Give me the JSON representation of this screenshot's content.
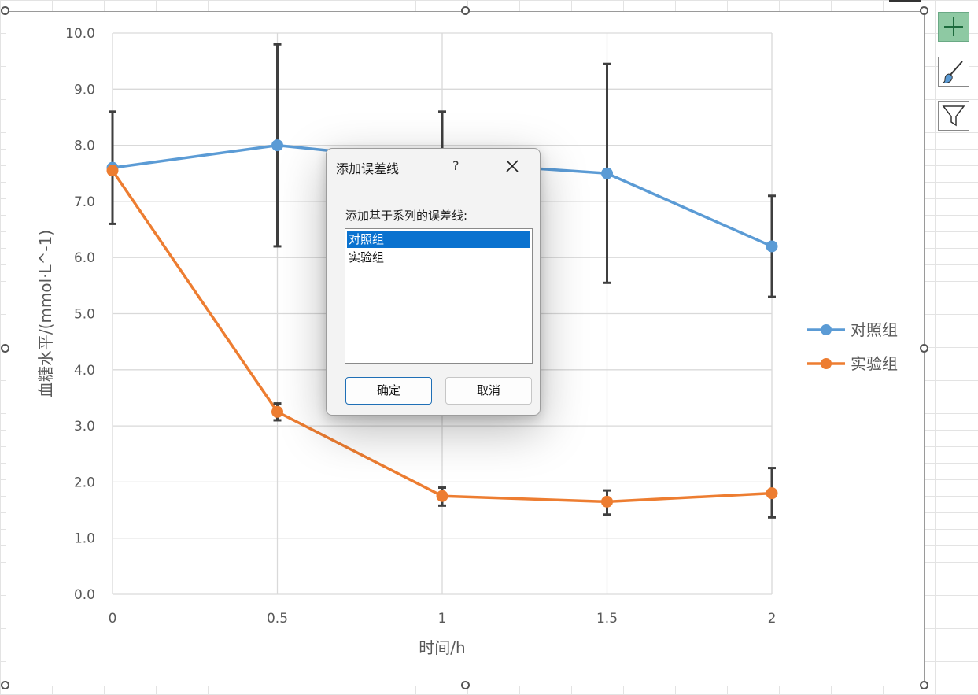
{
  "chart_data": {
    "type": "line",
    "xlabel": "时间/h",
    "ylabel": "血糖水平/(mmol·L^-1)",
    "x": [
      0,
      0.5,
      1,
      1.5,
      2
    ],
    "x_tick_labels": [
      "0",
      "0.5",
      "1",
      "1.5",
      "2"
    ],
    "y_tick_labels": [
      "0.0",
      "1.0",
      "2.0",
      "3.0",
      "4.0",
      "5.0",
      "6.0",
      "7.0",
      "8.0",
      "9.0",
      "10.0"
    ],
    "ylim": [
      0,
      10
    ],
    "grid": true,
    "legend_position": "right",
    "series": [
      {
        "name": "对照组",
        "color": "#5b9bd5",
        "values": [
          7.6,
          8.0,
          7.7,
          7.5,
          6.2
        ],
        "error_low": [
          6.6,
          6.2,
          6.8,
          5.55,
          5.3
        ],
        "error_high": [
          8.6,
          9.8,
          8.6,
          9.45,
          7.1
        ]
      },
      {
        "name": "实验组",
        "color": "#ed7d31",
        "values": [
          7.55,
          3.25,
          1.75,
          1.65,
          1.8
        ],
        "error_low": [
          7.55,
          3.1,
          1.58,
          1.42,
          1.37
        ],
        "error_high": [
          7.55,
          3.4,
          1.9,
          1.85,
          2.25
        ]
      }
    ]
  },
  "dialog": {
    "title": "添加误差线",
    "help": "?",
    "prompt": "添加基于系列的误差线:",
    "items": [
      "对照组",
      "实验组"
    ],
    "selected_index": 0,
    "ok_label": "确定",
    "cancel_label": "取消"
  },
  "side_buttons": {
    "elements": "plus-icon",
    "styles": "brush-icon",
    "filters": "funnel-icon"
  }
}
